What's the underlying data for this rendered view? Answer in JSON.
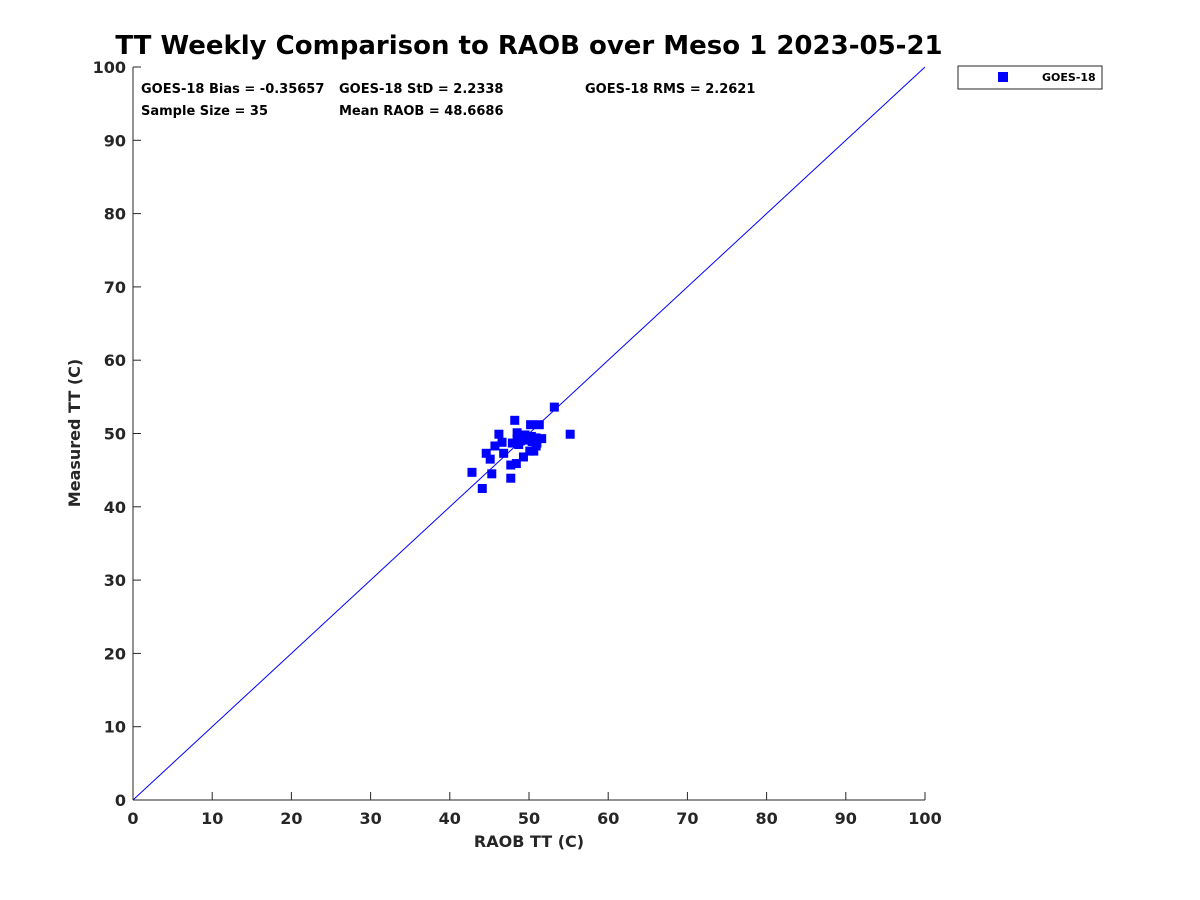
{
  "chart_data": {
    "type": "scatter",
    "title": "TT Weekly Comparison to RAOB over Meso 1 2023-05-21",
    "xlabel": "RAOB TT (C)",
    "ylabel": "Measured TT (C)",
    "xlim": [
      0,
      100
    ],
    "ylim": [
      0,
      100
    ],
    "xticks": [
      "0",
      "10",
      "20",
      "30",
      "40",
      "50",
      "60",
      "70",
      "80",
      "90",
      "100"
    ],
    "yticks": [
      "0",
      "10",
      "20",
      "30",
      "40",
      "50",
      "60",
      "70",
      "80",
      "90",
      "100"
    ],
    "reference_line": {
      "from": [
        0,
        0
      ],
      "to": [
        100,
        100
      ]
    },
    "legend": {
      "position": "outside-top-right",
      "entries": [
        "GOES-18"
      ]
    },
    "stats": {
      "bias": "GOES-18 Bias = -0.35657",
      "std": "GOES-18 StD = 2.2338",
      "rms": "GOES-18 RMS = 2.2621",
      "sample_size": "Sample Size = 35",
      "mean_raob": "Mean RAOB = 48.6686"
    },
    "series": [
      {
        "name": "GOES-18",
        "color": "#0000ff",
        "marker": "square",
        "points": [
          [
            42.8,
            44.7
          ],
          [
            44.1,
            42.5
          ],
          [
            44.6,
            47.3
          ],
          [
            45.1,
            46.5
          ],
          [
            45.3,
            44.5
          ],
          [
            45.7,
            48.3
          ],
          [
            46.2,
            49.9
          ],
          [
            46.6,
            48.8
          ],
          [
            46.8,
            47.3
          ],
          [
            47.7,
            45.7
          ],
          [
            47.7,
            43.9
          ],
          [
            48.2,
            51.8
          ],
          [
            48.4,
            45.9
          ],
          [
            48.5,
            50.1
          ],
          [
            48.5,
            49.3
          ],
          [
            48.7,
            48.5
          ],
          [
            49.0,
            49.5
          ],
          [
            49.3,
            46.8
          ],
          [
            49.5,
            49.8
          ],
          [
            49.8,
            49.1
          ],
          [
            50.1,
            47.6
          ],
          [
            50.2,
            51.2
          ],
          [
            50.3,
            49.6
          ],
          [
            50.6,
            47.6
          ],
          [
            50.9,
            48.3
          ],
          [
            50.9,
            49.4
          ],
          [
            51.0,
            48.7
          ],
          [
            51.3,
            51.2
          ],
          [
            51.6,
            49.3
          ],
          [
            53.2,
            53.6
          ],
          [
            55.2,
            49.9
          ],
          [
            48.9,
            49.0
          ],
          [
            49.6,
            49.4
          ],
          [
            50.4,
            48.9
          ],
          [
            47.9,
            48.7
          ]
        ]
      }
    ]
  }
}
